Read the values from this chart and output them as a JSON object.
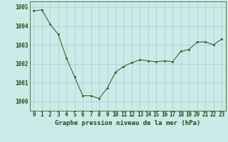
{
  "x": [
    0,
    1,
    2,
    3,
    4,
    5,
    6,
    7,
    8,
    9,
    10,
    11,
    12,
    13,
    14,
    15,
    16,
    17,
    18,
    19,
    20,
    21,
    22,
    23
  ],
  "y": [
    1004.8,
    1004.85,
    1004.1,
    1003.55,
    1002.3,
    1001.3,
    1000.3,
    1000.3,
    1000.15,
    1000.7,
    1001.55,
    1001.85,
    1002.05,
    1002.2,
    1002.15,
    1002.1,
    1002.15,
    1002.1,
    1002.65,
    1002.75,
    1003.15,
    1003.15,
    1003.0,
    1003.3
  ],
  "ylim": [
    999.5,
    1005.3
  ],
  "yticks": [
    1000,
    1001,
    1002,
    1003,
    1004,
    1005
  ],
  "xtick_labels": [
    "0",
    "1",
    "2",
    "3",
    "4",
    "5",
    "6",
    "7",
    "8",
    "9",
    "10",
    "11",
    "12",
    "13",
    "14",
    "15",
    "16",
    "17",
    "18",
    "19",
    "20",
    "21",
    "22",
    "23"
  ],
  "xlabel": "Graphe pression niveau de la mer (hPa)",
  "line_color": "#2d6a2d",
  "marker_color": "#2d6a2d",
  "bg_color": "#cceae7",
  "grid_color": "#a8cccc",
  "label_color": "#1a4d1a",
  "xlabel_fontsize": 6.5,
  "tick_fontsize": 5.5,
  "ytick_fontsize": 5.5
}
